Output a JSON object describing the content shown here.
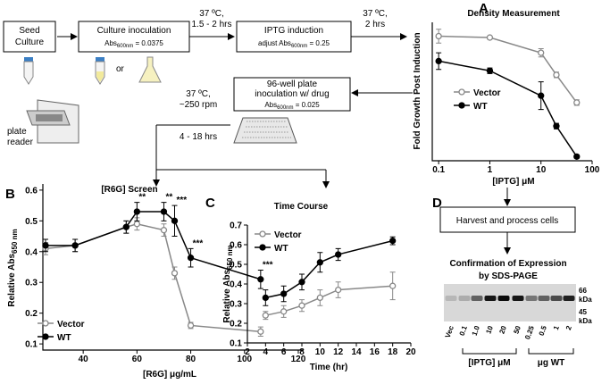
{
  "panel_labels": [
    "A",
    "B",
    "C",
    "D"
  ],
  "flow": {
    "seed": [
      "Seed",
      "Culture"
    ],
    "culture": {
      "title": "Culture inoculation",
      "abs": {
        "pre": "Abs",
        "sub": "600nm",
        "post": " = 0.0375"
      }
    },
    "or": "or",
    "step1": [
      "37 ºC,",
      "1.5 - 2 hrs"
    ],
    "iptg": {
      "title": "IPTG induction",
      "abs": {
        "pre": "adjust Abs",
        "sub": "600nm",
        "post": " = 0.25"
      }
    },
    "step2": [
      "37 ºC,",
      "2 hrs"
    ],
    "plate": {
      "title": [
        "96-well plate",
        "inoculation w/ drug"
      ],
      "abs": {
        "pre": "Abs",
        "sub": "600nm",
        "post": " = 0.025"
      }
    },
    "step3": [
      "37 ºC,",
      "~250 rpm"
    ],
    "step4": "4 - 18 hrs",
    "reader": [
      "plate",
      "reader"
    ]
  },
  "gel": {
    "harvest": "Harvest and process cells",
    "title": [
      "Confirmation of Expression",
      "by SDS-PAGE"
    ],
    "lanes": [
      "Vec",
      "0.1",
      "1.0",
      "10",
      "20",
      "50",
      "0.25",
      "0.5",
      "1",
      "2"
    ],
    "markers": [
      {
        "label": "66",
        "unit": "kDa"
      },
      {
        "label": "45",
        "unit": "kDa"
      }
    ],
    "groups": [
      "[IPTG] μM",
      "μg WT"
    ]
  },
  "chart_data": [
    {
      "type": "line",
      "title": "Density Measurement",
      "xlabel": "[IPTG] μM",
      "ylabel": {
        "text": "Fold Growth Post Induction"
      },
      "xscale": "log",
      "xlim": [
        0.075,
        100
      ],
      "xticks": [
        0.1,
        1,
        10,
        100
      ],
      "ylim": [
        0,
        1
      ],
      "x": [
        0.1,
        1,
        10,
        20,
        50
      ],
      "series": [
        {
          "name": "Vector",
          "color": "#888888",
          "marker": "open",
          "values": [
            0.9,
            0.89,
            0.78,
            0.62,
            0.42
          ],
          "errors": [
            0.05,
            0.01,
            0.03,
            0.02,
            0.02
          ]
        },
        {
          "name": "WT",
          "color": "#000000",
          "marker": "filled",
          "values": [
            0.72,
            0.65,
            0.47,
            0.25,
            0.03
          ],
          "errors": [
            0.06,
            0.02,
            0.1,
            0.02,
            0.01
          ]
        }
      ]
    },
    {
      "type": "line",
      "title": "[R6G] Screen",
      "xlabel": "[R6G] μg/mL",
      "ylabel": {
        "text": "Relative Abs",
        "sub": "650 nm"
      },
      "xlim": [
        25,
        122
      ],
      "xticks": [
        40,
        60,
        80,
        100,
        120
      ],
      "ylim": [
        0.08,
        0.62
      ],
      "yticks": [
        0.1,
        0.2,
        0.3,
        0.4,
        0.5,
        0.6
      ],
      "x": [
        26,
        37,
        56,
        60,
        70,
        74,
        80,
        106
      ],
      "series": [
        {
          "name": "Vector",
          "color": "#888888",
          "marker": "open",
          "values": [
            0.41,
            0.42,
            0.48,
            0.49,
            0.47,
            0.33,
            0.16,
            0.14
          ],
          "errors": [
            0.02,
            0.02,
            0.02,
            0.02,
            0.02,
            0.02,
            0.01,
            0.015
          ]
        },
        {
          "name": "WT",
          "color": "#000000",
          "marker": "filled",
          "values": [
            0.42,
            0.42,
            0.48,
            0.53,
            0.53,
            0.5,
            0.38,
            0.31
          ],
          "errors": [
            0.02,
            0.02,
            0.02,
            0.03,
            0.03,
            0.05,
            0.03,
            0.03
          ],
          "annotations": [
            null,
            null,
            null,
            "**",
            "**",
            "***",
            "***",
            "***"
          ]
        }
      ]
    },
    {
      "type": "line",
      "title": "Time Course",
      "xlabel": "Time (hr)",
      "ylabel": {
        "text": "Relative Abs",
        "sub": "650 nm"
      },
      "xlim": [
        2,
        20
      ],
      "xticks": [
        2,
        4,
        6,
        8,
        10,
        12,
        14,
        16,
        18,
        20
      ],
      "ylim": [
        0.1,
        0.7
      ],
      "yticks": [
        0.1,
        0.2,
        0.3,
        0.4,
        0.5,
        0.6,
        0.7
      ],
      "x": [
        4,
        6,
        8,
        10,
        12,
        18
      ],
      "series": [
        {
          "name": "Vector",
          "color": "#888888",
          "marker": "open",
          "values": [
            0.24,
            0.26,
            0.29,
            0.33,
            0.37,
            0.39
          ],
          "errors": [
            0.02,
            0.03,
            0.03,
            0.04,
            0.04,
            0.07
          ]
        },
        {
          "name": "WT",
          "color": "#000000",
          "marker": "filled",
          "values": [
            0.33,
            0.35,
            0.41,
            0.51,
            0.55,
            0.62
          ],
          "errors": [
            0.04,
            0.04,
            0.04,
            0.05,
            0.03,
            0.02
          ]
        }
      ]
    }
  ]
}
